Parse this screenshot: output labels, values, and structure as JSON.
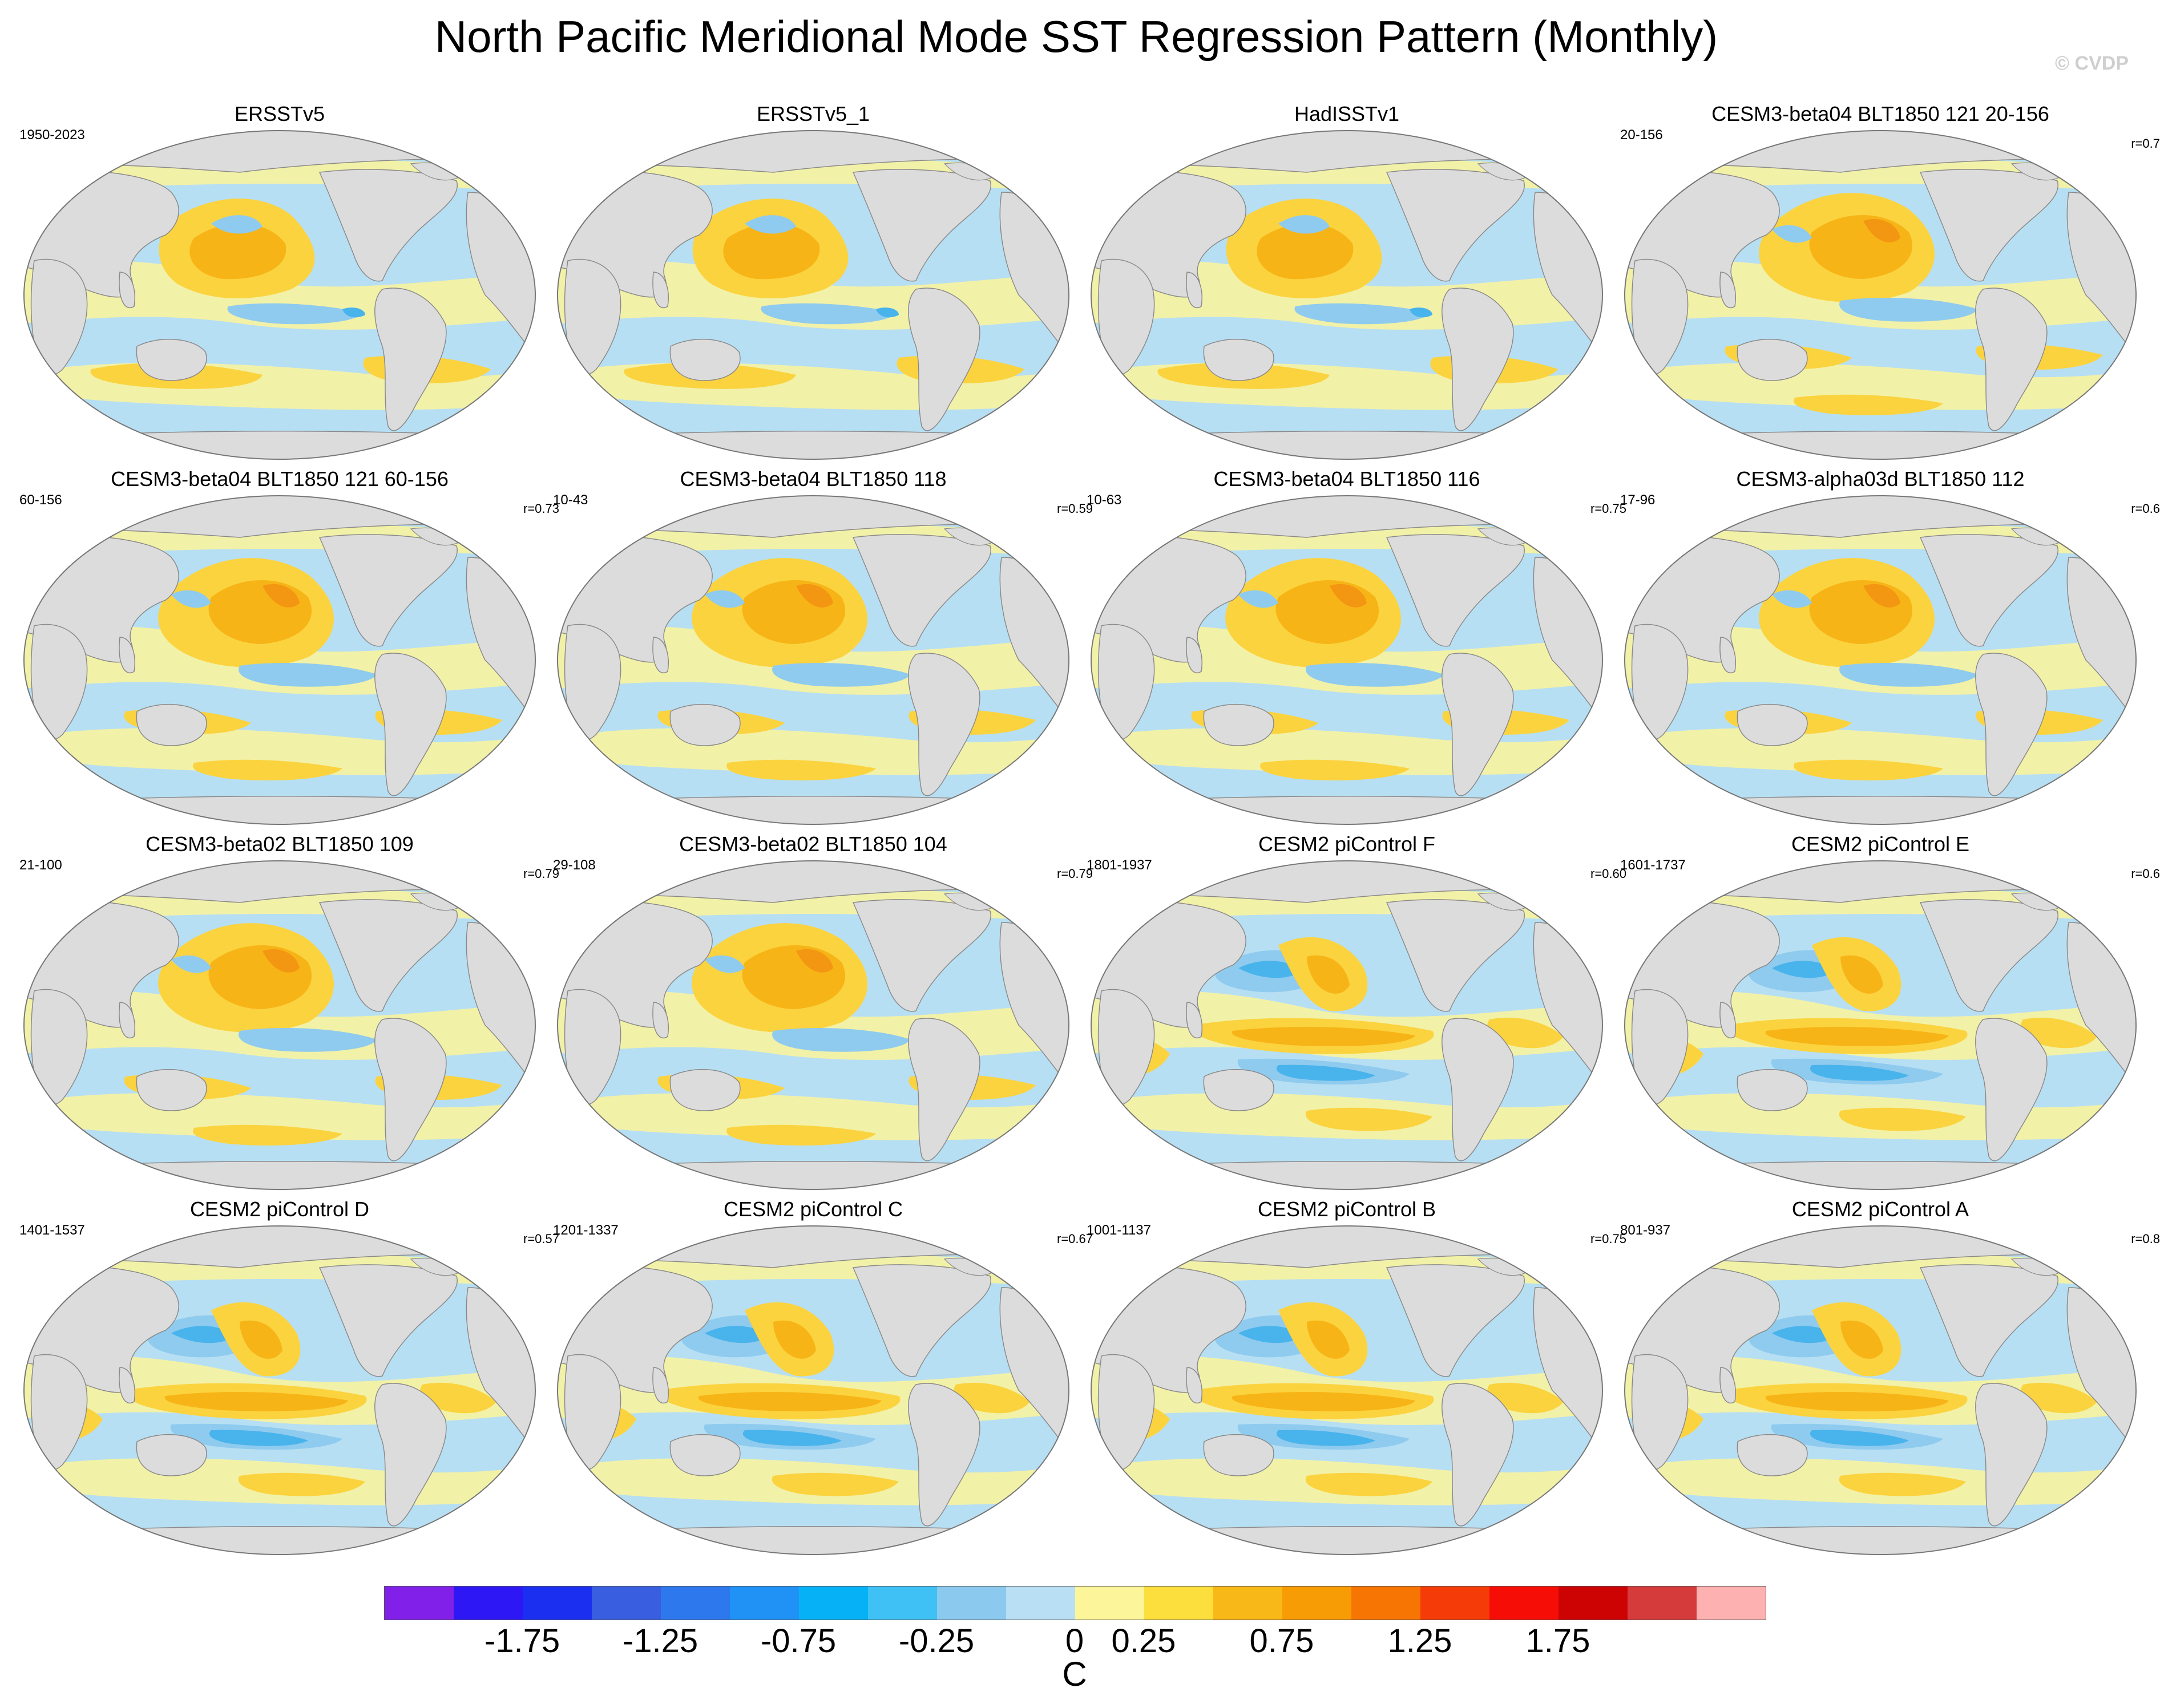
{
  "title": "North Pacific Meridional Mode SST Regression Pattern (Monthly)",
  "watermark": "© CVDP",
  "colors": {
    "land": "#dcdcdc",
    "coast": "#8a8a8a",
    "ocean_weak_neg": "#b7dff3",
    "ocean_weak_pos": "#fdf59a",
    "pos_mid": "#fbd33f",
    "pos_strong": "#f7b417",
    "pos_max": "#f39612",
    "neg_mid": "#8fcbee",
    "neg_strong": "#49b3ec"
  },
  "panels": [
    {
      "title": "ERSSTv5",
      "years": "1950-2023",
      "corr": "",
      "style": "obs"
    },
    {
      "title": "ERSSTv5_1",
      "years": "",
      "corr": "",
      "style": "obs"
    },
    {
      "title": "HadISSTv1",
      "years": "",
      "corr": "",
      "style": "obs"
    },
    {
      "title": "CESM3-beta04 BLT1850 121 20-156",
      "years": "20-156",
      "corr": "r=0.7",
      "style": "beta"
    },
    {
      "title": "CESM3-beta04 BLT1850 121 60-156",
      "years": "60-156",
      "corr": "r=0.73",
      "style": "beta"
    },
    {
      "title": "CESM3-beta04 BLT1850 118",
      "years": "10-43",
      "corr": "r=0.59",
      "style": "beta"
    },
    {
      "title": "CESM3-beta04 BLT1850 116",
      "years": "10-63",
      "corr": "r=0.75",
      "style": "beta"
    },
    {
      "title": "CESM3-alpha03d BLT1850 112",
      "years": "17-96",
      "corr": "r=0.6",
      "style": "beta"
    },
    {
      "title": "CESM3-beta02 BLT1850 109",
      "years": "21-100",
      "corr": "r=0.79",
      "style": "beta"
    },
    {
      "title": "CESM3-beta02 BLT1850 104",
      "years": "29-108",
      "corr": "r=0.79",
      "style": "beta"
    },
    {
      "title": "CESM2 piControl F",
      "years": "1801-1937",
      "corr": "r=0.60",
      "style": "cesm2"
    },
    {
      "title": "CESM2 piControl E",
      "years": "1601-1737",
      "corr": "r=0.6",
      "style": "cesm2"
    },
    {
      "title": "CESM2 piControl D",
      "years": "1401-1537",
      "corr": "r=0.57",
      "style": "cesm2"
    },
    {
      "title": "CESM2 piControl C",
      "years": "1201-1337",
      "corr": "r=0.67",
      "style": "cesm2"
    },
    {
      "title": "CESM2 piControl B",
      "years": "1001-1137",
      "corr": "r=0.75",
      "style": "cesm2"
    },
    {
      "title": "CESM2 piControl A",
      "years": "801-937",
      "corr": "r=0.8",
      "style": "cesm2"
    }
  ],
  "colorbar": {
    "unit": "C",
    "colors": [
      "#8020e8",
      "#2d18f5",
      "#1a2ff0",
      "#3a5ee0",
      "#2e78ee",
      "#2092f5",
      "#06b2f5",
      "#3fc1f5",
      "#8cc9ee",
      "#b8dff3",
      "#fdf59a",
      "#fcde3c",
      "#f8b817",
      "#f89c06",
      "#f77502",
      "#f53c08",
      "#f60d06",
      "#cc0203",
      "#d63b3b",
      "#fdb1b1"
    ],
    "tick_labels": [
      "-1.75",
      "-1.25",
      "-0.75",
      "-0.25",
      "0",
      "0.25",
      "0.75",
      "1.25",
      "1.75"
    ]
  }
}
